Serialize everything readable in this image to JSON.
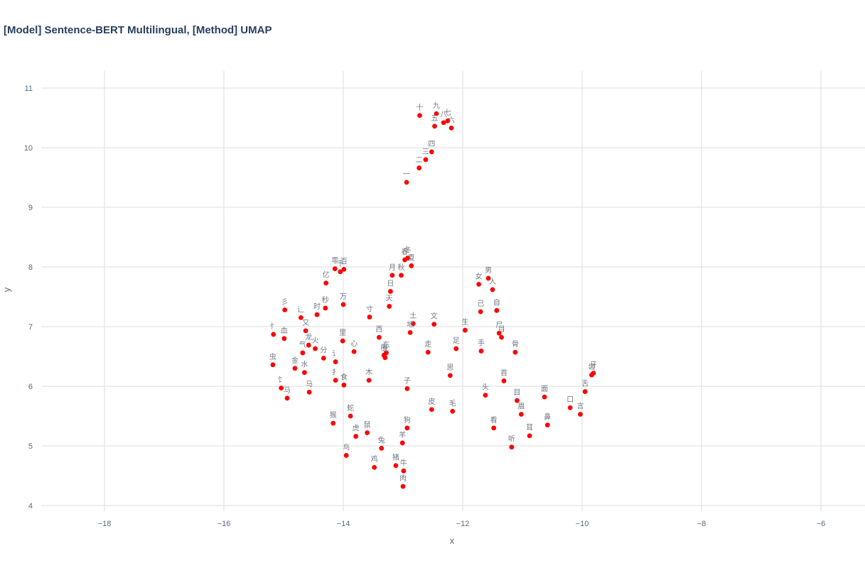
{
  "title": "[Model] Sentence-BERT Multilingual, [Method] UMAP",
  "chart_data": {
    "type": "scatter",
    "title": "[Model] Sentence-BERT Multilingual, [Method] UMAP",
    "xlabel": "x",
    "ylabel": "y",
    "xlim": [
      -19.07,
      -5.21
    ],
    "ylim": [
      3.87,
      11.26
    ],
    "xticks": [
      -18,
      -16,
      -14,
      -12,
      -10,
      -8,
      -6
    ],
    "yticks": [
      4,
      5,
      6,
      7,
      8,
      9,
      10,
      11
    ],
    "grid": true,
    "marker_color": "#ff0000",
    "points": [
      {
        "label": "十",
        "x": -12.72,
        "y": 10.54
      },
      {
        "label": "九",
        "x": -12.44,
        "y": 10.57
      },
      {
        "label": "八",
        "x": -12.32,
        "y": 10.42
      },
      {
        "label": "七",
        "x": -12.25,
        "y": 10.45
      },
      {
        "label": "六",
        "x": -12.19,
        "y": 10.33
      },
      {
        "label": "五",
        "x": -12.47,
        "y": 10.36
      },
      {
        "label": "四",
        "x": -12.52,
        "y": 9.93
      },
      {
        "label": "三",
        "x": -12.62,
        "y": 9.8
      },
      {
        "label": "二",
        "x": -12.73,
        "y": 9.66
      },
      {
        "label": "一",
        "x": -12.94,
        "y": 9.42
      },
      {
        "label": "冬",
        "x": -12.92,
        "y": 8.15
      },
      {
        "label": "春",
        "x": -12.97,
        "y": 8.12
      },
      {
        "label": "夏",
        "x": -12.86,
        "y": 8.02
      },
      {
        "label": "零",
        "x": -14.14,
        "y": 7.97
      },
      {
        "label": "百",
        "x": -13.99,
        "y": 7.96
      },
      {
        "label": "千",
        "x": -14.05,
        "y": 7.92
      },
      {
        "label": "月",
        "x": -13.18,
        "y": 7.86
      },
      {
        "label": "秋",
        "x": -13.03,
        "y": 7.86
      },
      {
        "label": "亿",
        "x": -14.29,
        "y": 7.73
      },
      {
        "label": "日",
        "x": -13.21,
        "y": 7.59
      },
      {
        "label": "天",
        "x": -13.23,
        "y": 7.34
      },
      {
        "label": "万",
        "x": -14.0,
        "y": 7.37
      },
      {
        "label": "秒",
        "x": -14.3,
        "y": 7.31
      },
      {
        "label": "彡",
        "x": -14.98,
        "y": 7.28
      },
      {
        "label": "时",
        "x": -14.44,
        "y": 7.2
      },
      {
        "label": "辶",
        "x": -14.71,
        "y": 7.15
      },
      {
        "label": "寸",
        "x": -13.56,
        "y": 7.16
      },
      {
        "label": "土",
        "x": -12.83,
        "y": 7.05
      },
      {
        "label": "文",
        "x": -12.48,
        "y": 7.04
      },
      {
        "label": "又",
        "x": -14.63,
        "y": 6.93
      },
      {
        "label": "忄",
        "x": -15.17,
        "y": 6.87
      },
      {
        "label": "血",
        "x": -14.99,
        "y": 6.8
      },
      {
        "label": "地",
        "x": -12.88,
        "y": 6.9
      },
      {
        "label": "生",
        "x": -11.96,
        "y": 6.94
      },
      {
        "label": "西",
        "x": -13.4,
        "y": 6.82
      },
      {
        "label": "里",
        "x": -14.01,
        "y": 6.76
      },
      {
        "label": "龙",
        "x": -14.58,
        "y": 6.69
      },
      {
        "label": "火",
        "x": -14.47,
        "y": 6.63
      },
      {
        "label": "气",
        "x": -14.68,
        "y": 6.56
      },
      {
        "label": "分",
        "x": -14.33,
        "y": 6.47
      },
      {
        "label": "讠",
        "x": -14.13,
        "y": 6.41
      },
      {
        "label": "心",
        "x": -13.82,
        "y": 6.58
      },
      {
        "label": "东",
        "x": -13.28,
        "y": 6.56
      },
      {
        "label": "南",
        "x": -13.32,
        "y": 6.52
      },
      {
        "label": "北",
        "x": -13.3,
        "y": 6.48
      },
      {
        "label": "走",
        "x": -12.58,
        "y": 6.57
      },
      {
        "label": "足",
        "x": -12.11,
        "y": 6.63
      },
      {
        "label": "手",
        "x": -11.69,
        "y": 6.59
      },
      {
        "label": "骨",
        "x": -11.12,
        "y": 6.57
      },
      {
        "label": "尸",
        "x": -11.39,
        "y": 6.89
      },
      {
        "label": "目",
        "x": -11.35,
        "y": 6.82
      },
      {
        "label": "虫",
        "x": -15.18,
        "y": 6.36
      },
      {
        "label": "金",
        "x": -14.81,
        "y": 6.3
      },
      {
        "label": "水",
        "x": -14.65,
        "y": 6.23
      },
      {
        "label": "扌",
        "x": -14.13,
        "y": 6.1
      },
      {
        "label": "食",
        "x": -13.99,
        "y": 6.02
      },
      {
        "label": "木",
        "x": -13.57,
        "y": 6.1
      },
      {
        "label": "思",
        "x": -12.21,
        "y": 6.18
      },
      {
        "label": "首",
        "x": -11.31,
        "y": 6.09
      },
      {
        "label": "子",
        "x": -12.93,
        "y": 5.96
      },
      {
        "label": "饣",
        "x": -15.04,
        "y": 5.97
      },
      {
        "label": "马",
        "x": -14.94,
        "y": 5.8
      },
      {
        "label": "马",
        "x": -14.57,
        "y": 5.9
      },
      {
        "label": "头",
        "x": -11.62,
        "y": 5.85
      },
      {
        "label": "目",
        "x": -11.09,
        "y": 5.76
      },
      {
        "label": "面",
        "x": -10.63,
        "y": 5.82
      },
      {
        "label": "口",
        "x": -10.2,
        "y": 5.64
      },
      {
        "label": "言",
        "x": -10.03,
        "y": 5.53
      },
      {
        "label": "舌",
        "x": -9.95,
        "y": 5.91
      },
      {
        "label": "齿",
        "x": -9.84,
        "y": 6.19
      },
      {
        "label": "牙",
        "x": -9.81,
        "y": 6.22
      },
      {
        "label": "皮",
        "x": -12.52,
        "y": 5.61
      },
      {
        "label": "毛",
        "x": -12.17,
        "y": 5.58
      },
      {
        "label": "眉",
        "x": -11.02,
        "y": 5.53
      },
      {
        "label": "鼻",
        "x": -10.58,
        "y": 5.35
      },
      {
        "label": "看",
        "x": -11.48,
        "y": 5.3
      },
      {
        "label": "耳",
        "x": -10.88,
        "y": 5.17
      },
      {
        "label": "听",
        "x": -11.18,
        "y": 4.98
      },
      {
        "label": "蛇",
        "x": -13.88,
        "y": 5.5
      },
      {
        "label": "猴",
        "x": -14.17,
        "y": 5.38
      },
      {
        "label": "狗",
        "x": -12.93,
        "y": 5.3
      },
      {
        "label": "虎",
        "x": -13.79,
        "y": 5.16
      },
      {
        "label": "鼠",
        "x": -13.6,
        "y": 5.22
      },
      {
        "label": "羊",
        "x": -13.01,
        "y": 5.05
      },
      {
        "label": "兔",
        "x": -13.36,
        "y": 4.96
      },
      {
        "label": "鸟",
        "x": -13.95,
        "y": 4.84
      },
      {
        "label": "猪",
        "x": -13.12,
        "y": 4.67
      },
      {
        "label": "鸡",
        "x": -13.48,
        "y": 4.64
      },
      {
        "label": "牛",
        "x": -12.99,
        "y": 4.58
      },
      {
        "label": "肉",
        "x": -13.0,
        "y": 4.32
      },
      {
        "label": "女",
        "x": -11.73,
        "y": 7.71
      },
      {
        "label": "男",
        "x": -11.57,
        "y": 7.81
      },
      {
        "label": "人",
        "x": -11.5,
        "y": 7.62
      },
      {
        "label": "己",
        "x": -11.7,
        "y": 7.25
      },
      {
        "label": "自",
        "x": -11.43,
        "y": 7.27
      }
    ]
  }
}
